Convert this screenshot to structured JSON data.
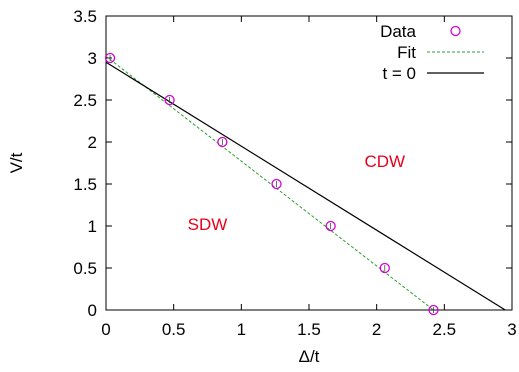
{
  "chart_data": {
    "type": "scatter",
    "xlabel": "Δ/t",
    "ylabel": "V/t",
    "xlim": [
      0,
      3
    ],
    "ylim": [
      0,
      3.5
    ],
    "xticks": [
      0,
      0.5,
      1,
      1.5,
      2,
      2.5,
      3
    ],
    "xtick_labels": [
      "0",
      "0.5",
      "1",
      "1.5",
      "2",
      "2.5",
      "3"
    ],
    "yticks": [
      0,
      0.5,
      1,
      1.5,
      2,
      2.5,
      3,
      3.5
    ],
    "ytick_labels": [
      "0",
      "0.5",
      "1",
      "1.5",
      "2",
      "2.5",
      "3",
      "3.5"
    ],
    "grid": false,
    "legend_position": "top-right",
    "series": [
      {
        "name": "Data",
        "kind": "points",
        "marker": "circle",
        "color": "#d400d4",
        "x": [
          0.03,
          0.47,
          0.86,
          1.26,
          1.66,
          2.06,
          2.42
        ],
        "y": [
          3.0,
          2.5,
          2.0,
          1.5,
          1.0,
          0.5,
          0.0
        ]
      },
      {
        "name": "Fit",
        "kind": "line",
        "style": "dashed",
        "color": "#2ca02c",
        "x": [
          0.0,
          2.42
        ],
        "y": [
          3.02,
          0.0
        ]
      },
      {
        "name": "t = 0",
        "kind": "line",
        "style": "solid",
        "color": "#000000",
        "x": [
          0.0,
          2.95
        ],
        "y": [
          2.95,
          0.0
        ]
      }
    ],
    "annotations": [
      {
        "text": "CDW",
        "x": 2.06,
        "y": 1.7,
        "color": "#e8001a"
      },
      {
        "text": "SDW",
        "x": 0.75,
        "y": 0.95,
        "color": "#e8001a"
      }
    ]
  }
}
